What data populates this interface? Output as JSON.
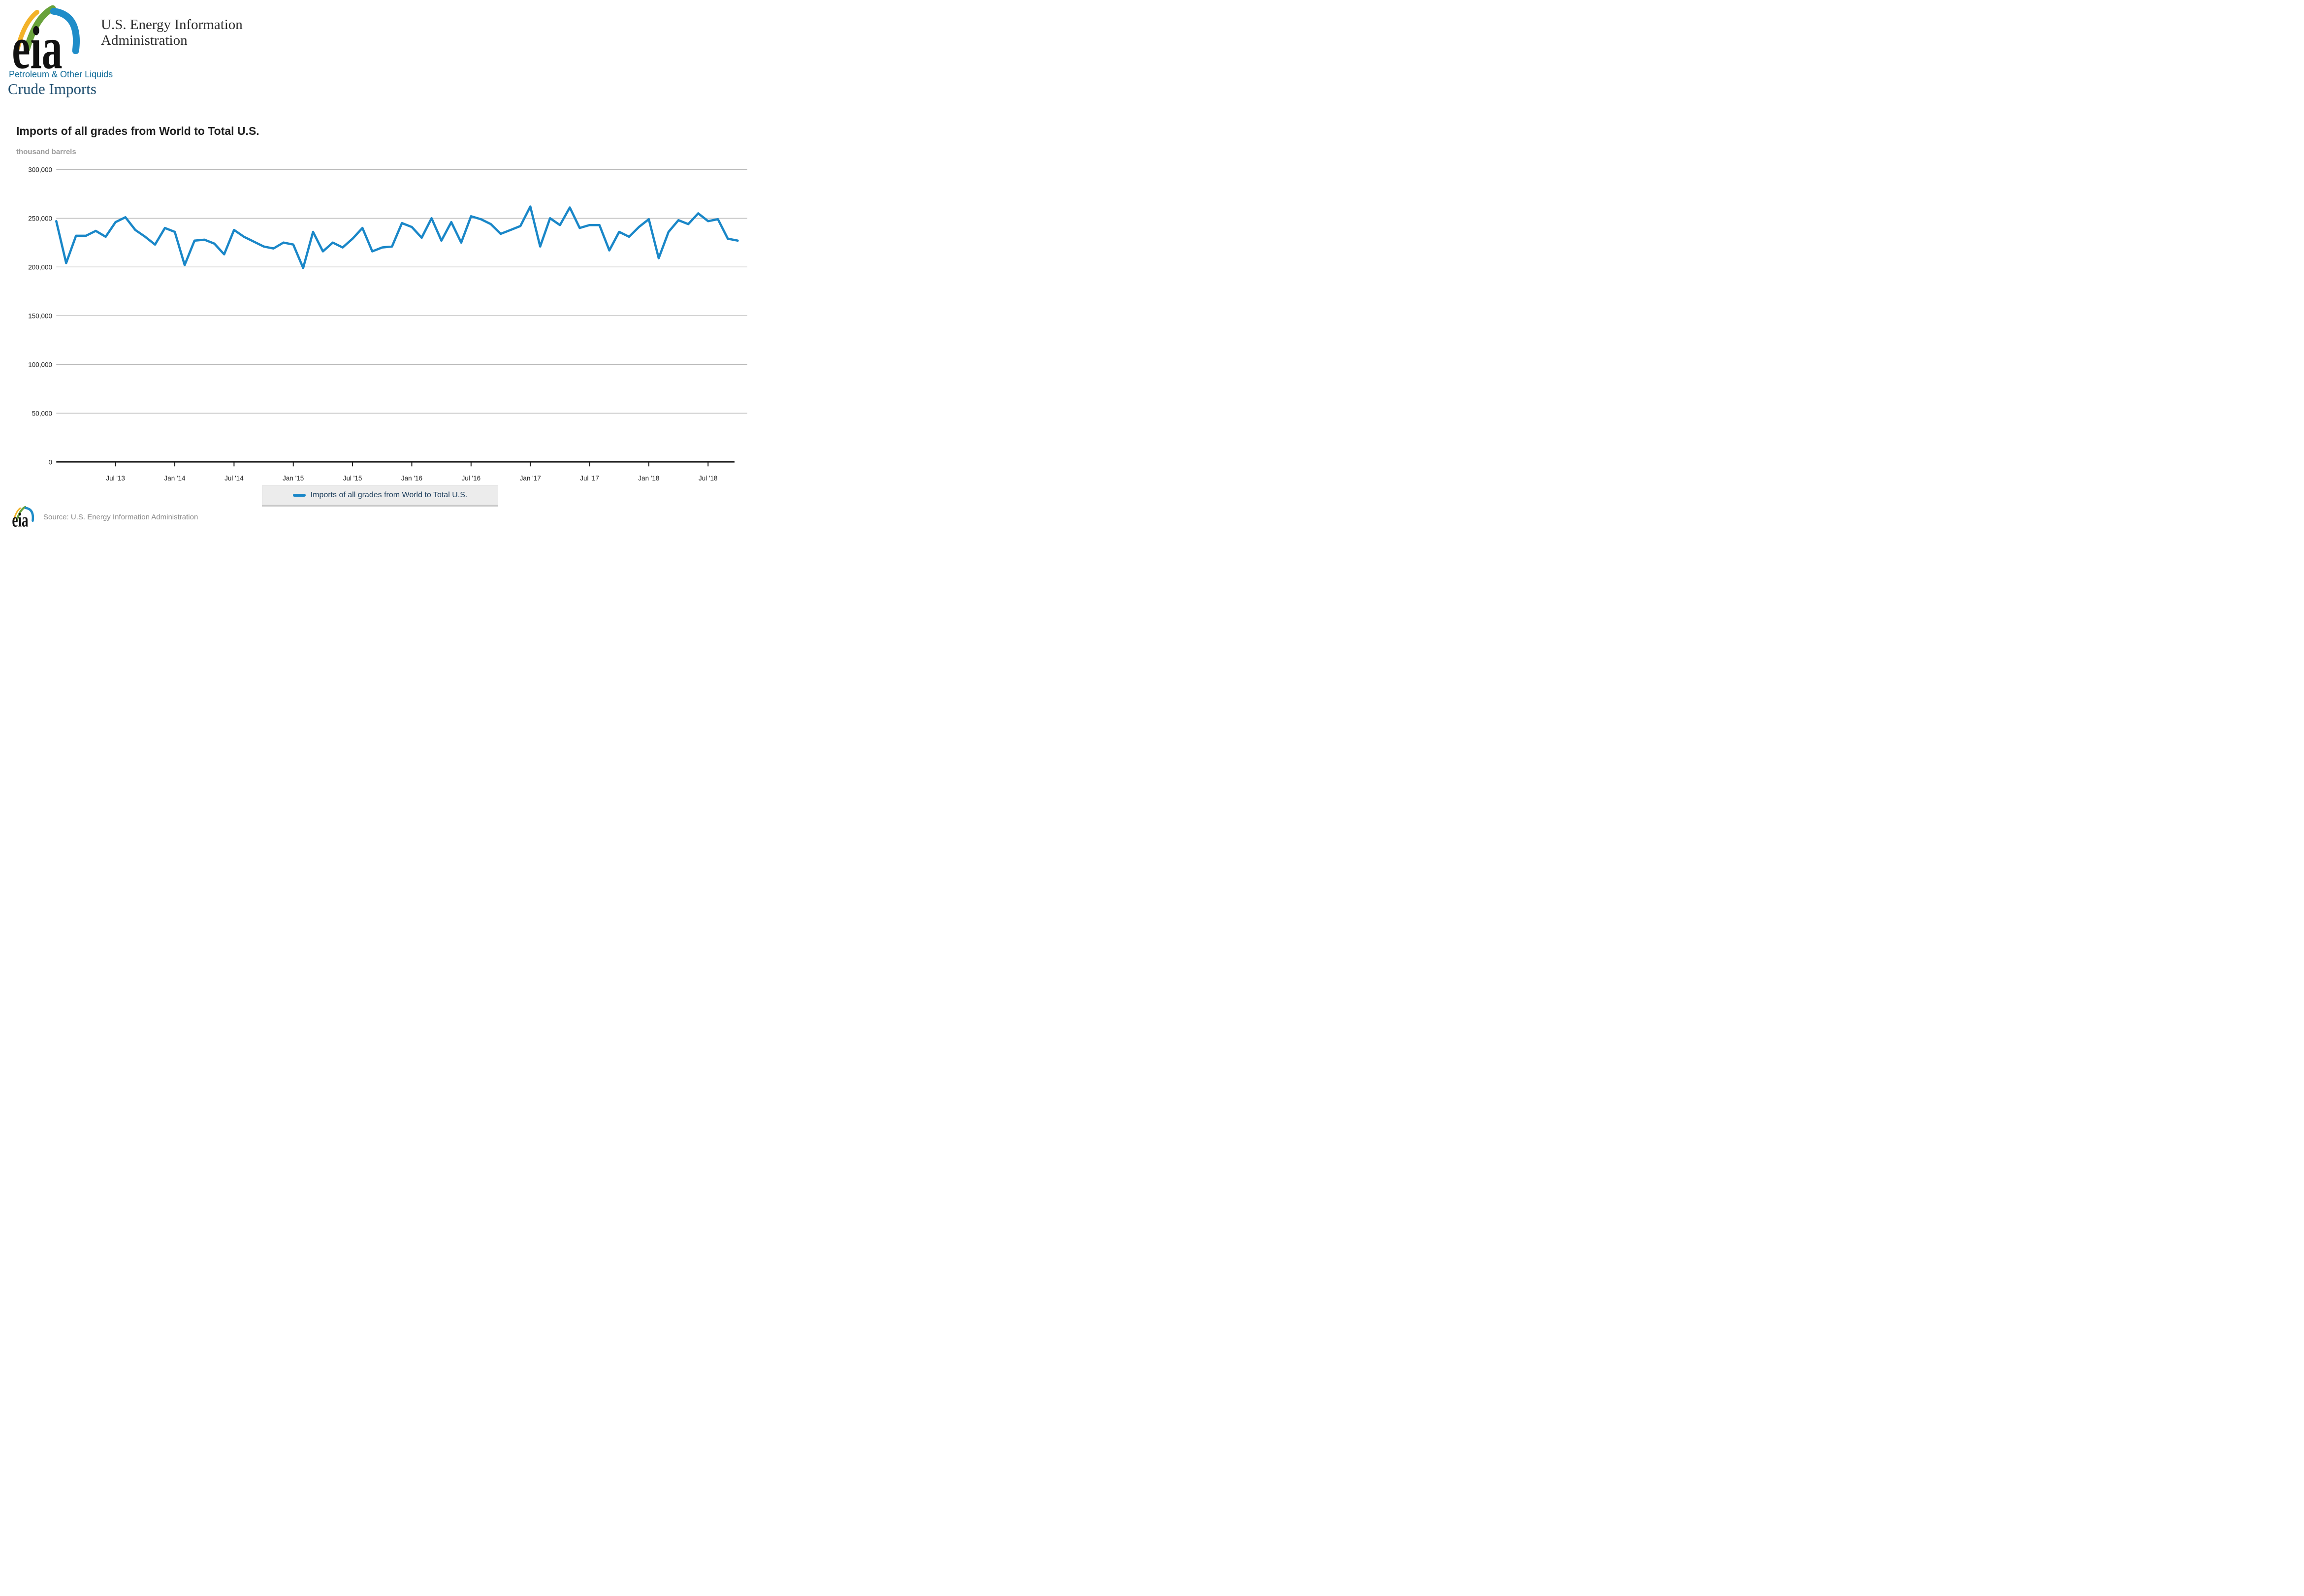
{
  "header": {
    "brand_line1": "U.S. Energy Information",
    "brand_line2": "Administration",
    "section_link": "Petroleum & Other Liquids",
    "page_title": "Crude Imports"
  },
  "chart": {
    "title": "Imports of all grades from World to Total U.S.",
    "unit_label": "thousand barrels"
  },
  "legend": {
    "label": "Imports of all grades from World to Total U.S."
  },
  "footer": {
    "source": "Source: U.S. Energy Information Administration"
  },
  "colors": {
    "line": "#1a87c8",
    "grid": "#b9b9b9",
    "axis": "#1a1a1a",
    "tick_text": "#222222",
    "logo_yellow": "#f3b229",
    "logo_green": "#69a23b",
    "logo_blue": "#1f8dc9"
  },
  "chart_data": {
    "type": "line",
    "title": "Imports of all grades from World to Total U.S.",
    "ylabel": "thousand barrels",
    "xlabel": "",
    "ylim": [
      0,
      300000
    ],
    "ytick_interval": 50000,
    "yticks": [
      "0",
      "50,000",
      "100,000",
      "150,000",
      "200,000",
      "250,000",
      "300,000"
    ],
    "grid": true,
    "legend_position": "bottom",
    "x_start_month": "2013-01",
    "x_end_month": "2018-10",
    "xticks": [
      {
        "index": 6,
        "label": "Jul '13"
      },
      {
        "index": 12,
        "label": "Jan '14"
      },
      {
        "index": 18,
        "label": "Jul '14"
      },
      {
        "index": 24,
        "label": "Jan '15"
      },
      {
        "index": 30,
        "label": "Jul '15"
      },
      {
        "index": 36,
        "label": "Jan '16"
      },
      {
        "index": 42,
        "label": "Jul '16"
      },
      {
        "index": 48,
        "label": "Jan '17"
      },
      {
        "index": 54,
        "label": "Jul '17"
      },
      {
        "index": 60,
        "label": "Jan '18"
      },
      {
        "index": 66,
        "label": "Jul '18"
      }
    ],
    "series": [
      {
        "name": "Imports of all grades from World to Total U.S.",
        "values": [
          247000,
          204000,
          232000,
          232000,
          237000,
          231000,
          246000,
          251000,
          238000,
          231000,
          223000,
          240000,
          236000,
          202000,
          227000,
          228000,
          224000,
          213000,
          238000,
          231000,
          226000,
          221000,
          219000,
          225000,
          223000,
          199000,
          236000,
          216000,
          225000,
          220000,
          229000,
          240000,
          216000,
          220000,
          221000,
          245000,
          241000,
          230000,
          250000,
          227000,
          246000,
          225000,
          252000,
          249000,
          244000,
          234000,
          238000,
          242000,
          262000,
          221000,
          250000,
          243000,
          261000,
          240000,
          243000,
          243000,
          217000,
          236000,
          231000,
          241000,
          249000,
          209000,
          236000,
          248000,
          244000,
          255000,
          247000,
          249000,
          229000,
          227000
        ]
      }
    ]
  }
}
